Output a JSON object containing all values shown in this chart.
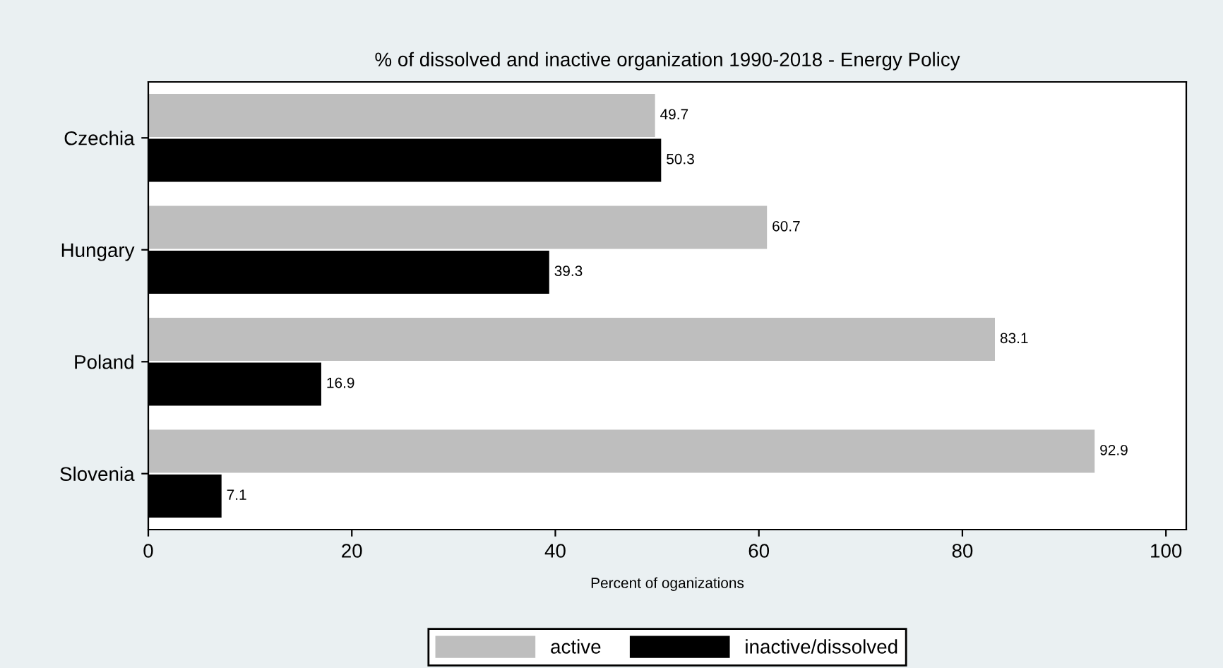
{
  "chart_data": {
    "type": "bar",
    "orientation": "horizontal",
    "title": "% of dissolved and inactive organization 1990-2018 - Energy Policy",
    "xlabel": "Percent of oganizations",
    "categories": [
      "Czechia",
      "Hungary",
      "Poland",
      "Slovenia"
    ],
    "series": [
      {
        "name": "active",
        "color": "#bebebe",
        "values": [
          49.7,
          60.7,
          83.1,
          92.9
        ]
      },
      {
        "name": "inactive/dissolved",
        "color": "#000000",
        "values": [
          50.3,
          39.3,
          16.9,
          7.1
        ]
      }
    ],
    "xlim": [
      0,
      102
    ],
    "xticks": [
      0,
      20,
      40,
      60,
      80,
      100
    ],
    "grid": false,
    "legend": "bottom",
    "data_labels": true
  }
}
